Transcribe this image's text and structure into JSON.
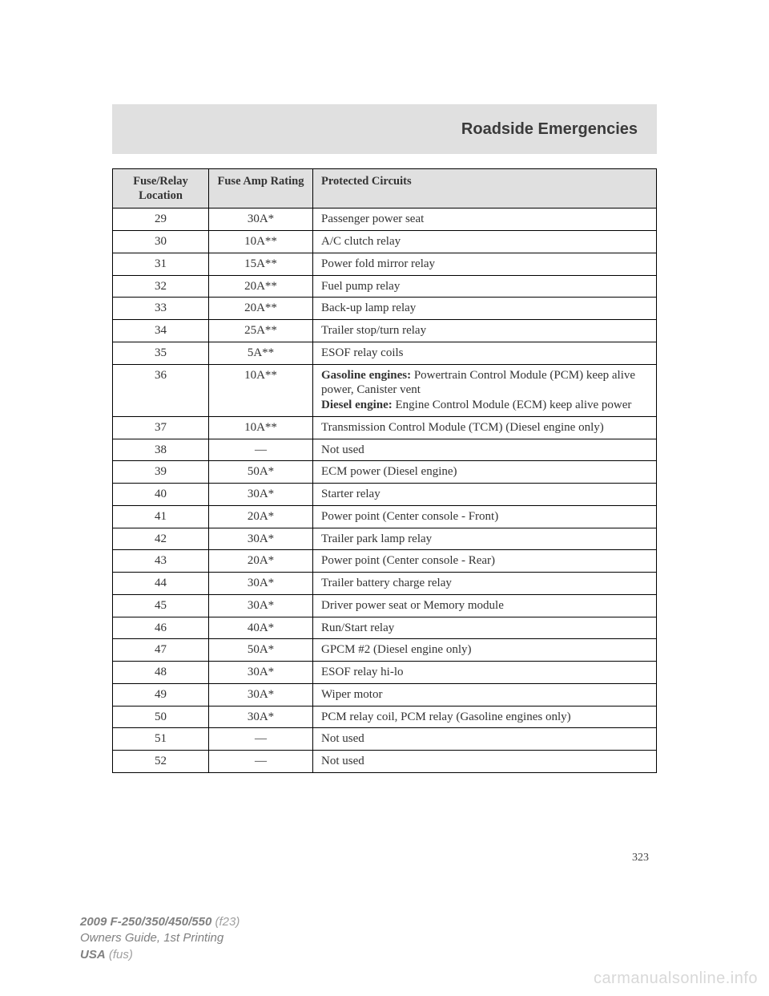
{
  "section_title": "Roadside Emergencies",
  "table": {
    "headers": {
      "loc": "Fuse/Relay Location",
      "amp": "Fuse Amp Rating",
      "circ": "Protected Circuits"
    },
    "rows": [
      {
        "loc": "29",
        "amp": "30A*",
        "circ": "Passenger power seat"
      },
      {
        "loc": "30",
        "amp": "10A**",
        "circ": "A/C clutch relay"
      },
      {
        "loc": "31",
        "amp": "15A**",
        "circ": "Power fold mirror relay"
      },
      {
        "loc": "32",
        "amp": "20A**",
        "circ": "Fuel pump relay"
      },
      {
        "loc": "33",
        "amp": "20A**",
        "circ": "Back-up lamp relay"
      },
      {
        "loc": "34",
        "amp": "25A**",
        "circ": "Trailer stop/turn relay"
      },
      {
        "loc": "35",
        "amp": "5A**",
        "circ": "ESOF relay coils"
      },
      {
        "loc": "36",
        "amp": "10A**",
        "circ_html": "<span class=\"bold-span\">Gasoline engines:</span> Powertrain Control Module (PCM) keep alive power, Canister vent<br><span class=\"bold-span\">Diesel engine:</span> Engine Control Module (ECM) keep alive power"
      },
      {
        "loc": "37",
        "amp": "10A**",
        "circ": "Transmission Control Module (TCM) (Diesel engine only)"
      },
      {
        "loc": "38",
        "amp": "—",
        "circ": "Not used"
      },
      {
        "loc": "39",
        "amp": "50A*",
        "circ": "ECM power (Diesel engine)"
      },
      {
        "loc": "40",
        "amp": "30A*",
        "circ": "Starter relay"
      },
      {
        "loc": "41",
        "amp": "20A*",
        "circ": "Power point (Center console - Front)"
      },
      {
        "loc": "42",
        "amp": "30A*",
        "circ": "Trailer park lamp relay"
      },
      {
        "loc": "43",
        "amp": "20A*",
        "circ": "Power point (Center console - Rear)"
      },
      {
        "loc": "44",
        "amp": "30A*",
        "circ": "Trailer battery charge relay"
      },
      {
        "loc": "45",
        "amp": "30A*",
        "circ": "Driver power seat or Memory module"
      },
      {
        "loc": "46",
        "amp": "40A*",
        "circ": "Run/Start relay"
      },
      {
        "loc": "47",
        "amp": "50A*",
        "circ": "GPCM #2 (Diesel engine only)"
      },
      {
        "loc": "48",
        "amp": "30A*",
        "circ": "ESOF relay hi-lo"
      },
      {
        "loc": "49",
        "amp": "30A*",
        "circ": "Wiper motor"
      },
      {
        "loc": "50",
        "amp": "30A*",
        "circ": "PCM relay coil, PCM relay (Gasoline engines only)"
      },
      {
        "loc": "51",
        "amp": "—",
        "circ": "Not used"
      },
      {
        "loc": "52",
        "amp": "—",
        "circ": "Not used"
      }
    ]
  },
  "page_number": "323",
  "footer": {
    "model": "2009 F-250/350/450/550",
    "code": "(f23)",
    "line2": "Owners Guide, 1st Printing",
    "line3a": "USA",
    "line3b": "(fus)"
  },
  "watermark": "carmanualsonline.info"
}
